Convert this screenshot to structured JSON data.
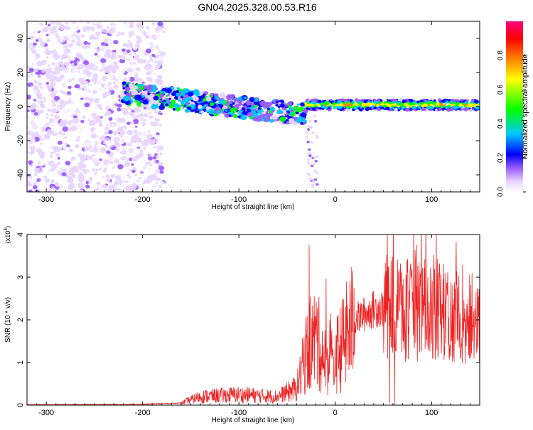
{
  "figure_title": "GN04.2025.328.00.53.R16",
  "chart_data": [
    {
      "type": "heatmap",
      "xlabel": "Height of straight line (km)",
      "ylabel": "Frequency (Hz)",
      "xlim": [
        -320,
        150
      ],
      "ylim": [
        -50,
        50
      ],
      "x_ticks": [
        -300,
        -200,
        -100,
        0,
        100
      ],
      "y_ticks": [
        -40,
        -20,
        0,
        20,
        40
      ],
      "colorbar": {
        "label": "Normalized spectral amplitude",
        "range": [
          0,
          1
        ],
        "ticks": [
          "0.0",
          "0.2",
          "0.4",
          "0.6",
          "0.8"
        ],
        "colormap": [
          "#ffffff",
          "#e8d6ff",
          "#9b5cff",
          "#0000ff",
          "#00c8ff",
          "#00ff00",
          "#ffff00",
          "#ff8000",
          "#ff0000",
          "#ff0080"
        ]
      },
      "regions": [
        {
          "x_range": [
            -320,
            -178
          ],
          "freq_range": [
            -50,
            50
          ],
          "amplitude": "0.0–0.3 (scattered noise)"
        },
        {
          "x_range": [
            -220,
            -30
          ],
          "freq_center_start": 8,
          "freq_center_end": -5,
          "amplitude": "0.2–0.6"
        },
        {
          "x_range": [
            -30,
            150
          ],
          "freq_center": 1,
          "amplitude": "0.5–0.9"
        }
      ]
    },
    {
      "type": "line",
      "xlabel": "Height of straight line (km)",
      "ylabel": "SNR (10 * v/v)",
      "scale_label": "(x10",
      "scale_exp": "4",
      "xlim": [
        -320,
        150
      ],
      "ylim": [
        0,
        4
      ],
      "x_ticks": [
        -300,
        -200,
        -100,
        0,
        100
      ],
      "y_ticks": [
        0,
        1,
        2,
        3,
        4
      ],
      "color": "#ee2222",
      "envelope": [
        {
          "x": -320,
          "y": 0.01
        },
        {
          "x": -200,
          "y": 0.02
        },
        {
          "x": -160,
          "y": 0.05
        },
        {
          "x": -140,
          "y": 0.2
        },
        {
          "x": -100,
          "y": 0.25
        },
        {
          "x": -60,
          "y": 0.2
        },
        {
          "x": -40,
          "y": 0.4
        },
        {
          "x": -30,
          "y": 1.2
        },
        {
          "x": -20,
          "y": 1.6
        },
        {
          "x": -10,
          "y": 1.0
        },
        {
          "x": 0,
          "y": 1.1
        },
        {
          "x": 20,
          "y": 2.0
        },
        {
          "x": 40,
          "y": 2.25
        },
        {
          "x": 60,
          "y": 2.3
        },
        {
          "x": 80,
          "y": 2.2
        },
        {
          "x": 100,
          "y": 2.3
        },
        {
          "x": 120,
          "y": 2.1
        },
        {
          "x": 150,
          "y": 2.0
        }
      ]
    }
  ]
}
